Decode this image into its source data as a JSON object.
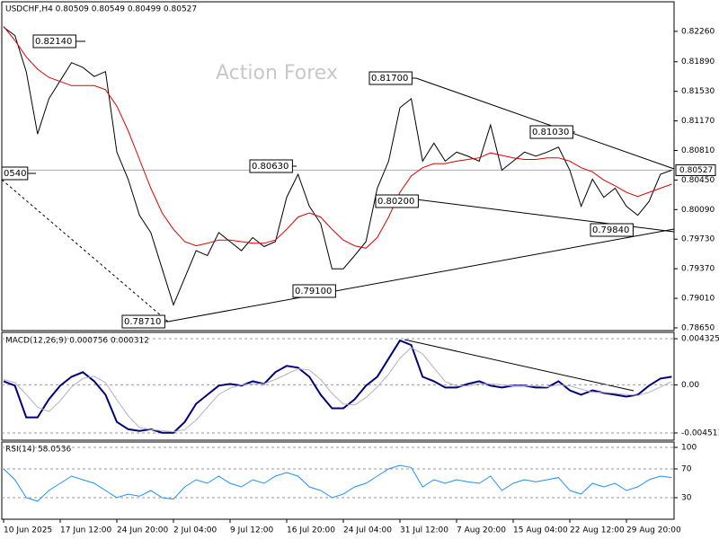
{
  "chart_data": [
    {
      "type": "line",
      "title": "USDCHF,H4  0.80509 0.80549 0.80499 0.80527",
      "watermark": "Action Forex",
      "last_label": "0.80527",
      "ylim": [
        0.78617,
        0.8262
      ],
      "yticks": [
        {
          "value": 0.8226,
          "label": "0.82260"
        },
        {
          "value": 0.8189,
          "label": "0.81890"
        },
        {
          "value": 0.8153,
          "label": "0.81530"
        },
        {
          "value": 0.8117,
          "label": "0.81170"
        },
        {
          "value": 0.8081,
          "label": "0.80810"
        },
        {
          "value": 0.8045,
          "label": "0.80450"
        },
        {
          "value": 0.8009,
          "label": "0.80090"
        },
        {
          "value": 0.7973,
          "label": "0.79730"
        },
        {
          "value": 0.7937,
          "label": "0.79370"
        },
        {
          "value": 0.7901,
          "label": "0.79010"
        },
        {
          "value": 0.7865,
          "label": "0.78650"
        }
      ],
      "annotations": [
        "0.82140",
        "0.80630",
        "0.81700",
        "0.81030",
        "0.80200",
        "0.79840",
        "0.79100",
        "0.78710",
        "0540"
      ],
      "series": [
        {
          "color": "#000000",
          "values": [
            0.8231,
            0.8221,
            0.8177,
            0.8101,
            0.8144,
            0.8166,
            0.8188,
            0.8182,
            0.8171,
            0.8177,
            0.8079,
            0.8046,
            0.8002,
            0.7981,
            0.7937,
            0.7893,
            0.7926,
            0.7959,
            0.7953,
            0.7981,
            0.797,
            0.7959,
            0.7975,
            0.7964,
            0.797,
            0.8024,
            0.8052,
            0.8013,
            0.7992,
            0.7937,
            0.7937,
            0.7953,
            0.797,
            0.8035,
            0.8068,
            0.8133,
            0.8144,
            0.8068,
            0.809,
            0.8068,
            0.8079,
            0.8074,
            0.8068,
            0.8112,
            0.8057,
            0.8068,
            0.8079,
            0.8074,
            0.8079,
            0.8085,
            0.8057,
            0.8013,
            0.8046,
            0.8024,
            0.8035,
            0.8013,
            0.8002,
            0.8019,
            0.8052,
            0.8057
          ]
        },
        {
          "color": "#e00000",
          "values": [
            0.8232,
            0.8215,
            0.8195,
            0.818,
            0.817,
            0.8165,
            0.816,
            0.816,
            0.816,
            0.8155,
            0.8135,
            0.8105,
            0.807,
            0.8035,
            0.8005,
            0.7985,
            0.797,
            0.7965,
            0.7968,
            0.7972,
            0.7972,
            0.797,
            0.7968,
            0.7968,
            0.7972,
            0.7985,
            0.8,
            0.8005,
            0.8,
            0.7985,
            0.7972,
            0.7965,
            0.7962,
            0.7975,
            0.8,
            0.803,
            0.805,
            0.806,
            0.8065,
            0.8065,
            0.8068,
            0.807,
            0.8072,
            0.8078,
            0.8075,
            0.8072,
            0.807,
            0.807,
            0.8072,
            0.8072,
            0.8068,
            0.806,
            0.8055,
            0.8045,
            0.8038,
            0.803,
            0.8025,
            0.803,
            0.8035,
            0.804
          ]
        }
      ]
    },
    {
      "type": "line",
      "title": "MACD(12,26,9) 0.000756 0.000312",
      "ylim": [
        -0.00519,
        0.00492
      ],
      "yticks": [
        0.004325,
        {
          "value": 0,
          "label": "0.00"
        },
        -0.004511
      ],
      "series": [
        {
          "color": "#00007a",
          "values": [
            0.00034,
            -8e-05,
            -0.00305,
            -0.00305,
            -0.00136,
            -8e-05,
            0.00076,
            0.00119,
            0.00034,
            -0.00093,
            -0.00348,
            -0.00416,
            -0.00432,
            -0.00416,
            -0.00449,
            -0.00449,
            -0.00348,
            -0.00178,
            -0.00093,
            -8e-05,
            8e-05,
            -8e-05,
            0.00034,
            8e-05,
            0.00119,
            0.00178,
            0.00161,
            0.00076,
            -0.00093,
            -0.0022,
            -0.0022,
            -0.00136,
            -8e-05,
            0.00076,
            0.00246,
            0.00416,
            0.00373,
            0.00076,
            0.00034,
            -0.00025,
            -0.00025,
            8e-05,
            0.00034,
            -8e-05,
            -0.00025,
            -8e-05,
            -8e-05,
            -0.00025,
            -0.00025,
            0.00034,
            -0.00051,
            -0.00093,
            -0.00051,
            -0.00076,
            -0.00093,
            -0.0011,
            -0.00093,
            -8e-05,
            0.00059,
            0.00076
          ]
        },
        {
          "color": "#b0b0c8",
          "values": [
            0.0005,
            0.0002,
            -0.0009,
            -0.0021,
            -0.0025,
            -0.0015,
            -0.0002,
            0.0006,
            0.0008,
            0.0002,
            -0.0014,
            -0.0029,
            -0.004,
            -0.0042,
            -0.0043,
            -0.0044,
            -0.0042,
            -0.0033,
            -0.0021,
            -0.0009,
            -0.0003,
            0,
            0.0001,
            0.0001,
            0.0005,
            0.001,
            0.0015,
            0.0014,
            0.0005,
            -0.0008,
            -0.0018,
            -0.0019,
            -0.0012,
            -0.0002,
            0.001,
            0.0025,
            0.0035,
            0.0029,
            0.0016,
            0.0003,
            -0.0001,
            -0.0001,
            0.0001,
            0.0001,
            0,
            -0.0001,
            -0.0001,
            -0.0001,
            -0.0002,
            0,
            -0.0001,
            -0.0004,
            -0.0007,
            -0.0007,
            -0.0008,
            -0.0009,
            -0.001,
            -0.0007,
            -0.0002,
            0.0003
          ]
        }
      ]
    },
    {
      "type": "line",
      "title": "RSI(14) 58.0536",
      "ylim": [
        0,
        107.5
      ],
      "yticks": [
        100,
        70,
        30
      ],
      "categories": [
        "10 Jun 2025",
        null,
        null,
        null,
        null,
        "17 Jun 12:00",
        null,
        null,
        null,
        null,
        "24 Jun 20:00",
        null,
        null,
        null,
        null,
        "2 Jul 04:00",
        null,
        null,
        null,
        null,
        "9 Jul 12:00",
        null,
        null,
        null,
        null,
        "16 Jul 20:00",
        null,
        null,
        null,
        null,
        "24 Jul 04:00",
        null,
        null,
        null,
        null,
        "31 Jul 12:00",
        null,
        null,
        null,
        null,
        "7 Aug 20:00",
        null,
        null,
        null,
        null,
        "15 Aug 04:00",
        null,
        null,
        null,
        null,
        "22 Aug 12:00",
        null,
        null,
        null,
        null,
        "29 Aug 20:00",
        null,
        null,
        null,
        null
      ],
      "series": [
        {
          "color": "#1e90ff",
          "values": [
            70,
            55,
            30,
            25,
            40,
            50,
            60,
            55,
            50,
            40,
            30,
            35,
            32,
            40,
            30,
            28,
            45,
            55,
            50,
            60,
            50,
            45,
            55,
            50,
            60,
            65,
            60,
            45,
            40,
            30,
            35,
            45,
            50,
            60,
            70,
            75,
            72,
            45,
            55,
            50,
            55,
            52,
            50,
            60,
            40,
            50,
            55,
            52,
            55,
            58,
            40,
            35,
            50,
            45,
            50,
            40,
            45,
            55,
            60,
            58
          ]
        }
      ]
    }
  ]
}
